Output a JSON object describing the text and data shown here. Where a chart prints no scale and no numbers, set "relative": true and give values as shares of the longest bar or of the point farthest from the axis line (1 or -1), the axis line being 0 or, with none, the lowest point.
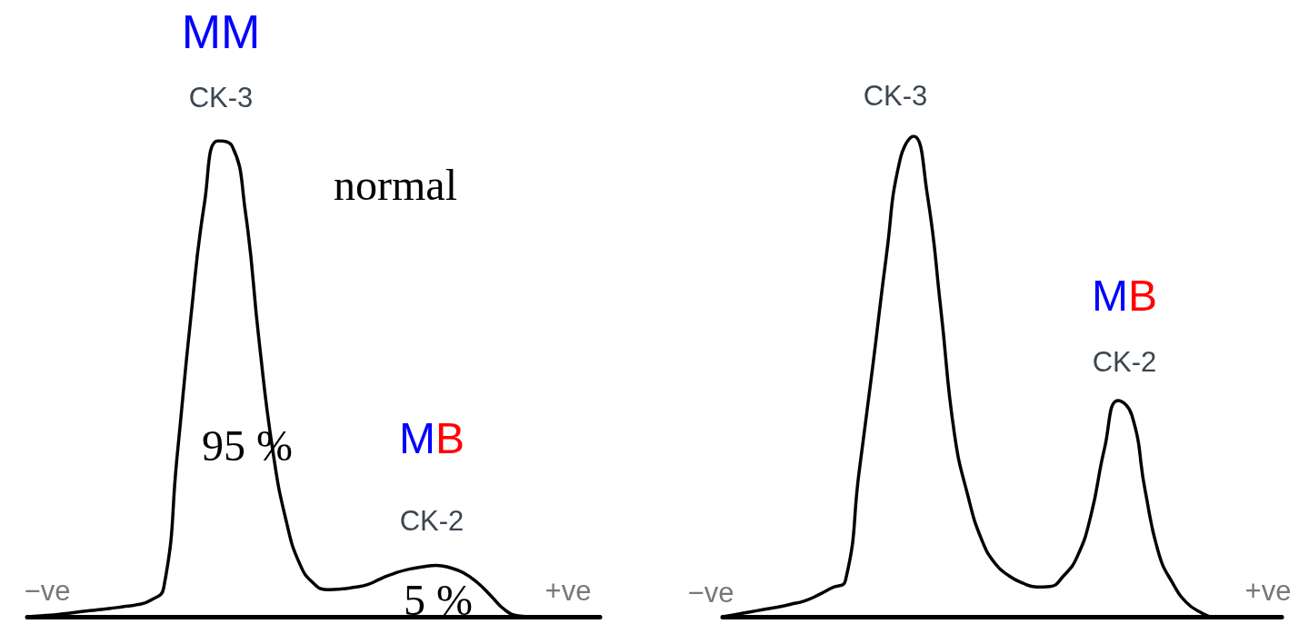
{
  "chart_data": [
    {
      "type": "line",
      "relative": true,
      "categories": [
        null,
        null,
        null,
        null,
        null,
        null,
        null,
        null,
        null,
        null,
        null,
        null,
        null,
        null,
        null,
        null,
        null,
        null,
        null,
        null,
        null,
        null,
        null,
        null,
        null,
        null,
        null,
        null,
        null,
        null,
        null,
        null,
        null,
        null,
        null,
        null,
        null,
        null,
        null,
        null,
        null,
        null,
        null
      ],
      "series": [
        {
          "color": "#000000",
          "values": [
            0,
            0.002,
            0.004,
            0.007,
            0.011,
            0.014,
            0.017,
            0.021,
            0.025,
            0.034,
            0.06,
            0.34,
            0.63,
            0.87,
            1,
            0.99,
            0.85,
            0.58,
            0.35,
            0.2,
            0.11,
            0.07,
            0.057,
            0.058,
            0.062,
            0.068,
            0.081,
            0.092,
            0.1,
            0.105,
            0.108,
            0.103,
            0.092,
            0.072,
            0.044,
            0.015,
            0.002,
            0,
            0,
            0,
            0,
            0,
            0
          ]
        }
      ],
      "annotations": [
        "MM",
        "CK-3",
        "normal",
        "95 %",
        "MB",
        "CK-2",
        "5 %",
        "−ve",
        "+ve"
      ]
    },
    {
      "type": "line",
      "relative": true,
      "categories": [
        null,
        null,
        null,
        null,
        null,
        null,
        null,
        null,
        null,
        null,
        null,
        null,
        null,
        null,
        null,
        null,
        null,
        null,
        null,
        null,
        null,
        null,
        null,
        null,
        null,
        null,
        null,
        null,
        null,
        null,
        null,
        null,
        null,
        null,
        null,
        null,
        null,
        null,
        null,
        null,
        null,
        null
      ],
      "series": [
        {
          "color": "#000000",
          "values": [
            0,
            0.005,
            0.01,
            0.015,
            0.02,
            0.026,
            0.033,
            0.045,
            0.06,
            0.075,
            0.3,
            0.52,
            0.75,
            0.95,
            1,
            0.88,
            0.64,
            0.38,
            0.25,
            0.16,
            0.11,
            0.085,
            0.07,
            0.062,
            0.063,
            0.085,
            0.125,
            0.21,
            0.35,
            0.45,
            0.42,
            0.26,
            0.13,
            0.07,
            0.03,
            0.01,
            0,
            0,
            0,
            0,
            0,
            0
          ]
        }
      ],
      "annotations": [
        "CK-3",
        "MB",
        "CK-2",
        "−ve",
        "+ve"
      ]
    }
  ]
}
